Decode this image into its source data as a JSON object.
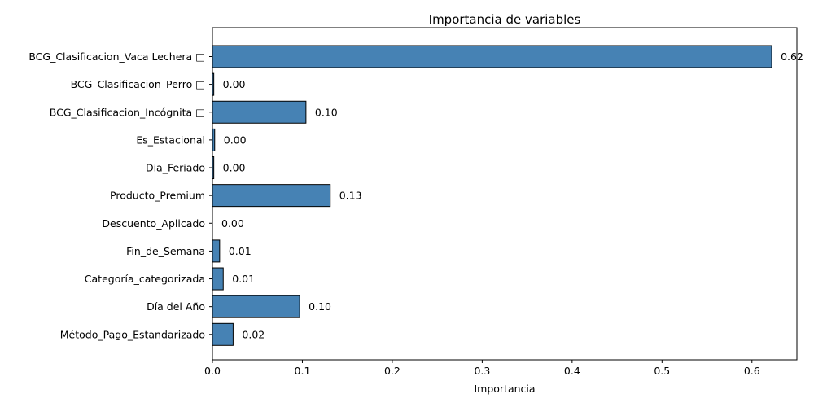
{
  "chart_data": {
    "type": "bar",
    "orientation": "horizontal",
    "title": "Importancia de variables",
    "xlabel": "Importancia",
    "ylabel": "",
    "xlim": [
      0,
      0.65
    ],
    "xticks": [
      "0.0",
      "0.1",
      "0.2",
      "0.3",
      "0.4",
      "0.5",
      "0.6"
    ],
    "categories": [
      "BCG_Clasificacion_Vaca Lechera □",
      "BCG_Clasificacion_Perro □",
      "BCG_Clasificacion_Incógnita □",
      "Es_Estacional",
      "Dia_Feriado",
      "Producto_Premium",
      "Descuento_Aplicado",
      "Fin_de_Semana",
      "Categoría_categorizada",
      "Día del Año",
      "Método_Pago_Estandarizado"
    ],
    "values": [
      0.622,
      0.0015,
      0.104,
      0.0025,
      0.0015,
      0.131,
      0.0,
      0.008,
      0.012,
      0.097,
      0.023
    ],
    "value_labels": [
      "0.62",
      "0.00",
      "0.10",
      "0.00",
      "0.00",
      "0.13",
      "0.00",
      "0.01",
      "0.01",
      "0.10",
      "0.02"
    ],
    "bar_color": "#4682b4",
    "edge_color": "#000000",
    "grid": false,
    "legend": "none"
  }
}
